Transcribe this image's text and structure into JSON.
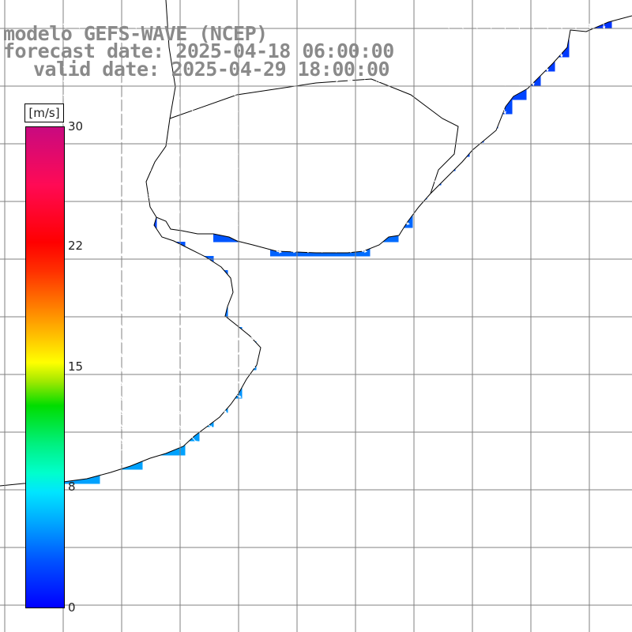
{
  "title": {
    "model": "modelo GEFS-WAVE (NCEP)",
    "forecast": "forecast date: 2025-04-18 06:00:00",
    "valid": "valid date: 2025-04-29 18:00:00"
  },
  "colorbar": {
    "unit": "[m/s]",
    "ticks": [
      "30",
      "22",
      "15",
      "8",
      "0"
    ],
    "range": [
      0,
      30
    ],
    "stops": [
      "#0000ff",
      "#00aaff",
      "#00ffcc",
      "#00dd00",
      "#ffff00",
      "#ff7a00",
      "#ff0000",
      "#c80a80"
    ]
  },
  "map": {
    "variable": "wind speed with direction arrows",
    "region": "Rio de la Plata estuary and adjacent South Atlantic",
    "land_color": "#ffffff",
    "grid": true,
    "arrow_color": "#ffffff",
    "coast_color": "#000000"
  }
}
